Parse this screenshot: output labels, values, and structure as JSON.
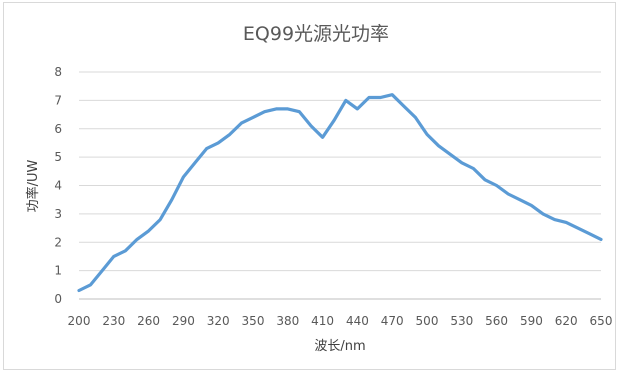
{
  "chart_data": {
    "type": "line",
    "title": "EQ99光源光功率",
    "xlabel": "波长/nm",
    "ylabel": "功率/UW",
    "ylim": [
      0,
      8
    ],
    "yticks": [
      "0",
      "1",
      "2",
      "3",
      "4",
      "5",
      "6",
      "7",
      "8"
    ],
    "xlim": [
      200,
      650
    ],
    "xticks": [
      "200",
      "230",
      "260",
      "290",
      "320",
      "350",
      "380",
      "410",
      "440",
      "470",
      "500",
      "530",
      "560",
      "590",
      "620",
      "650"
    ],
    "grid": true,
    "legend": "none",
    "series_color": "#5b9bd5",
    "series": [
      {
        "x": [
          200,
          210,
          220,
          230,
          240,
          250,
          260,
          270,
          280,
          290,
          300,
          310,
          320,
          330,
          340,
          350,
          360,
          370,
          380,
          390,
          400,
          410,
          420,
          430,
          440,
          450,
          460,
          470,
          480,
          490,
          500,
          510,
          520,
          530,
          540,
          550,
          560,
          570,
          580,
          590,
          600,
          610,
          620,
          630,
          640,
          650
        ],
        "values": [
          0.3,
          0.5,
          1.0,
          1.5,
          1.7,
          2.1,
          2.4,
          2.8,
          3.5,
          4.3,
          4.8,
          5.3,
          5.5,
          5.8,
          6.2,
          6.4,
          6.6,
          6.7,
          6.7,
          6.6,
          6.1,
          5.7,
          6.3,
          7.0,
          6.7,
          7.1,
          7.1,
          7.2,
          6.8,
          6.4,
          5.8,
          5.4,
          5.1,
          4.8,
          4.6,
          4.2,
          4.0,
          3.7,
          3.5,
          3.3,
          3.0,
          2.8,
          2.7,
          2.5,
          2.3,
          2.1
        ]
      }
    ]
  }
}
